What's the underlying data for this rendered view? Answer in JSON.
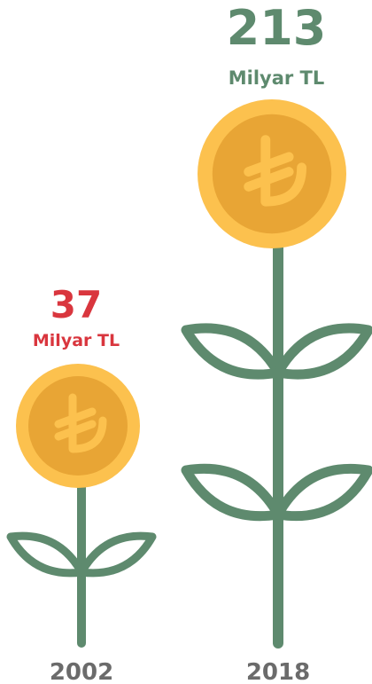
{
  "items": [
    {
      "value": 37,
      "unit": "Milyar TL",
      "year": "2002"
    },
    {
      "value": 213,
      "unit": "Milyar TL",
      "year": "2018"
    }
  ]
}
